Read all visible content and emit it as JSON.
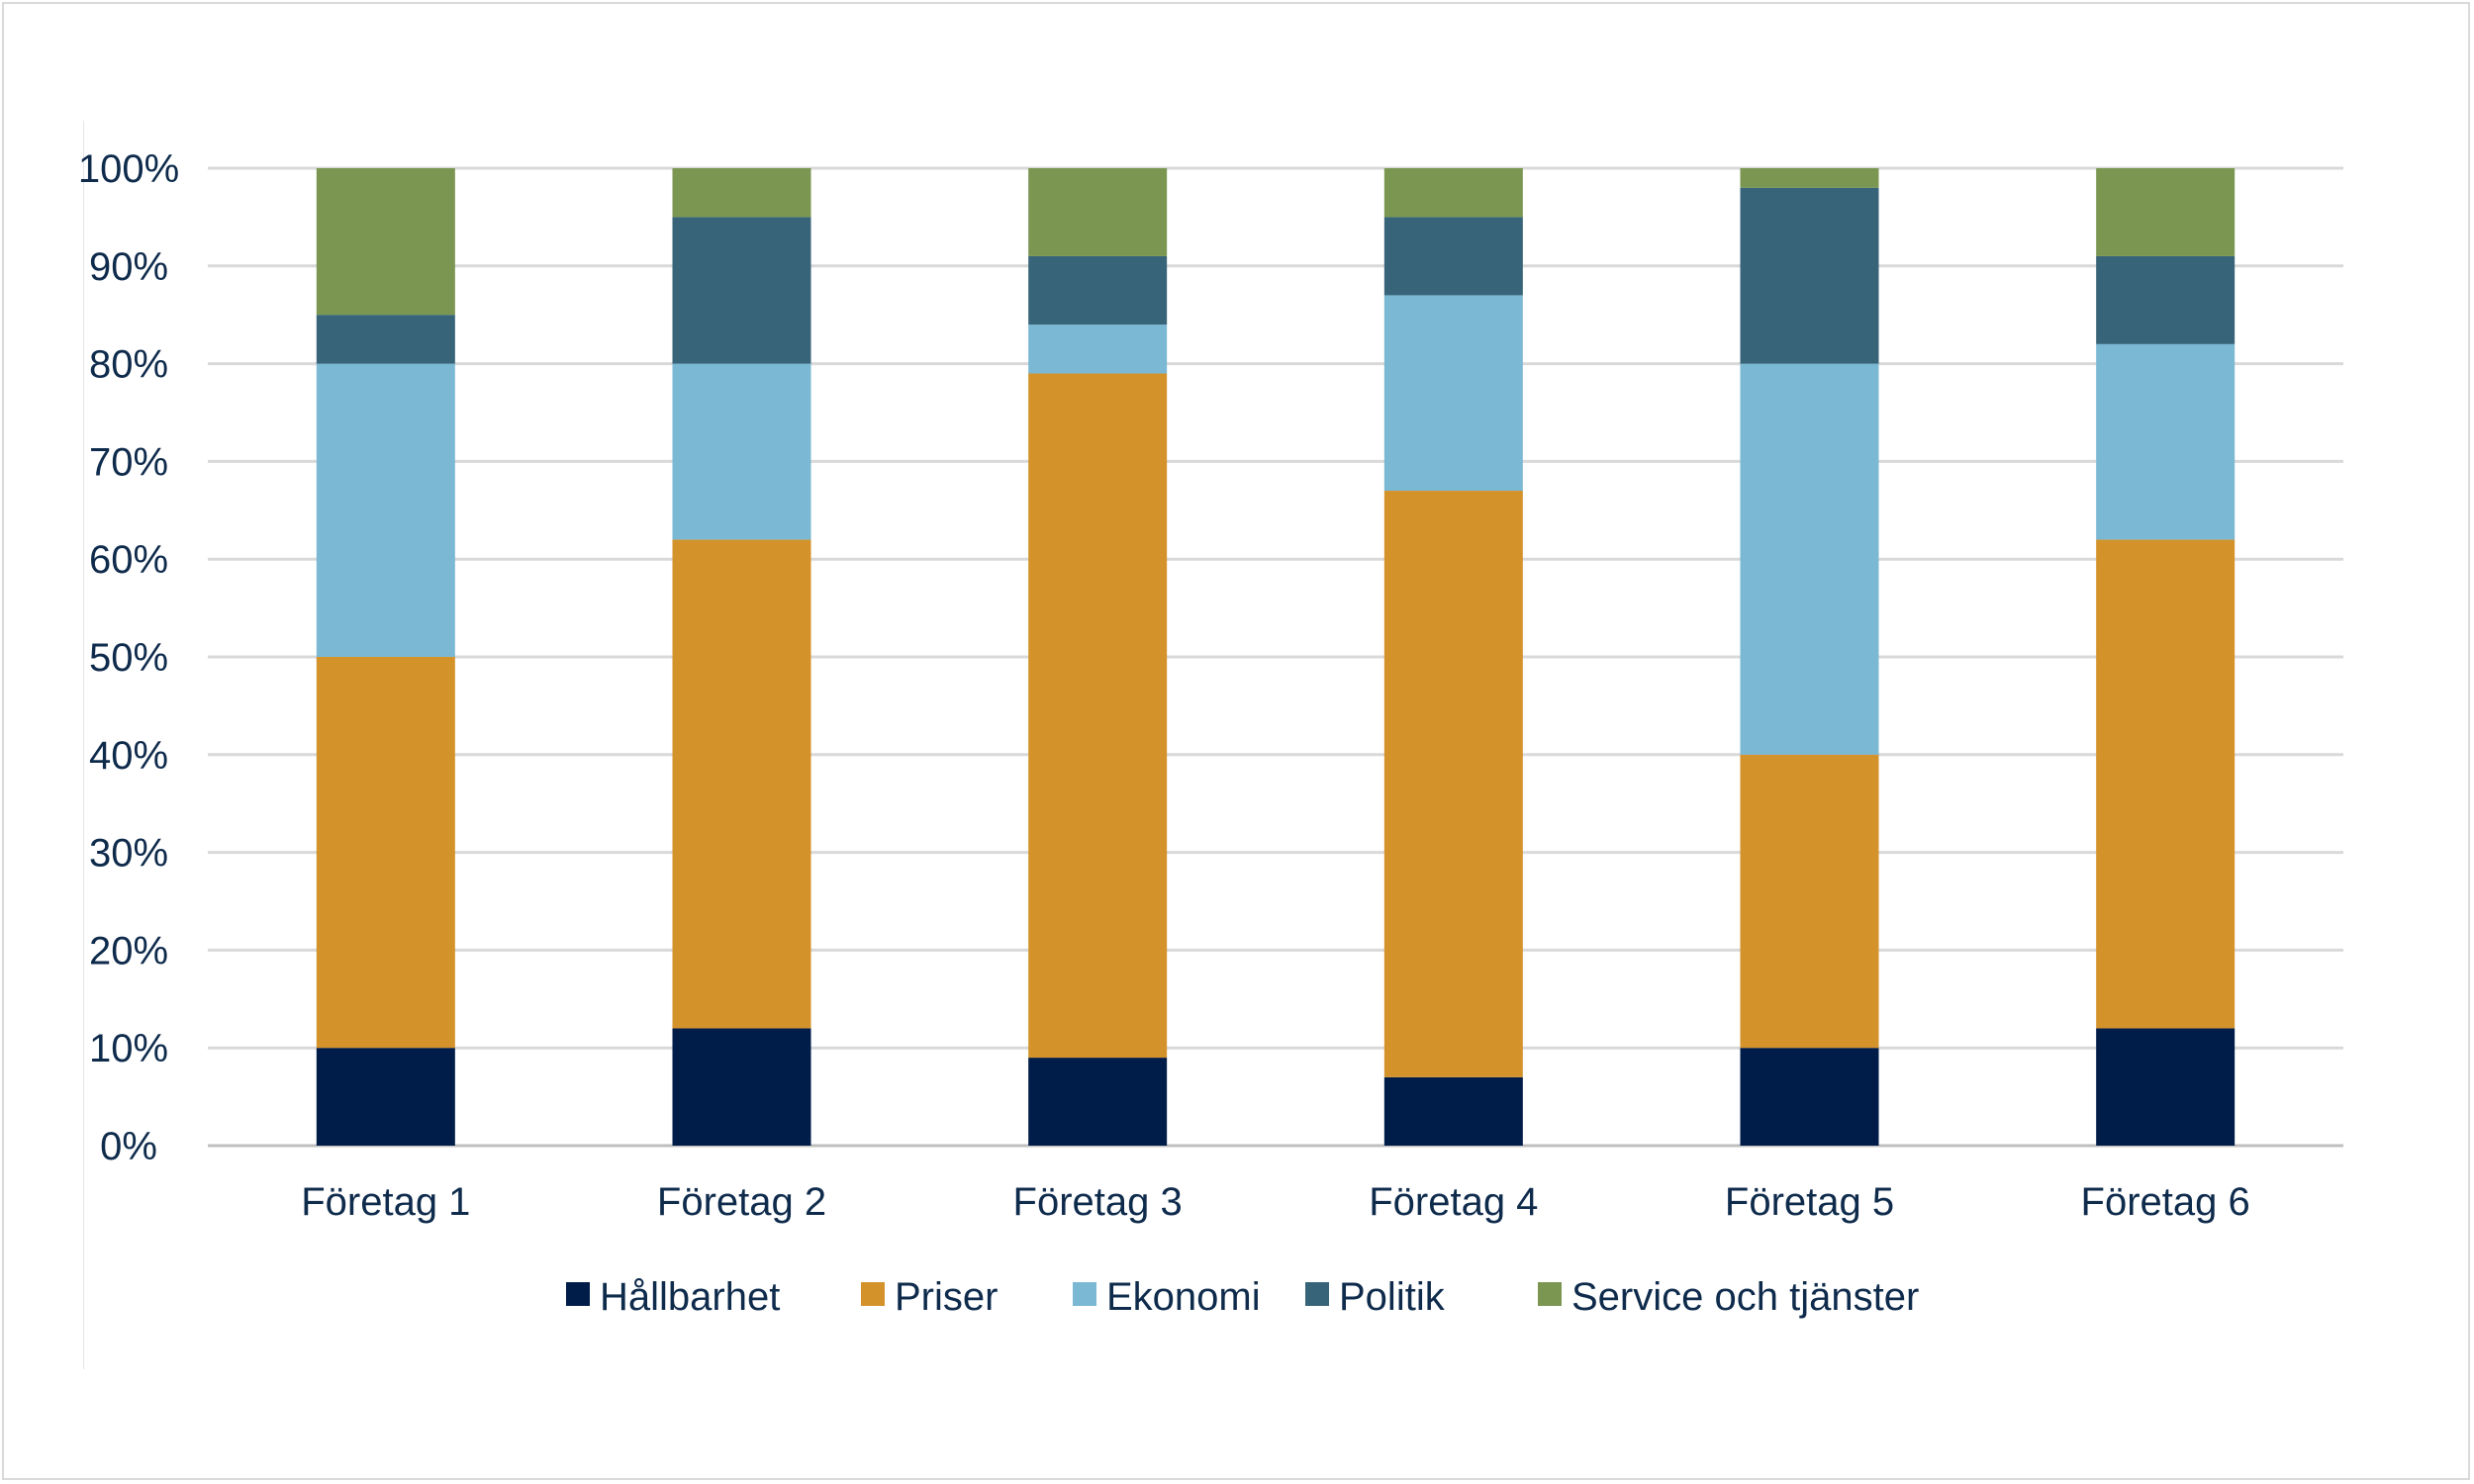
{
  "chart_data": {
    "type": "bar",
    "stacked": true,
    "categories": [
      "Företag 1",
      "Företag 2",
      "Företag 3",
      "Företag 4",
      "Företag 5",
      "Företag 6"
    ],
    "series": [
      {
        "name": "Hållbarhet",
        "color": "#001d4a",
        "values": [
          10,
          12,
          9,
          7,
          10,
          12
        ]
      },
      {
        "name": "Priser",
        "color": "#d4922a",
        "values": [
          40,
          50,
          70,
          60,
          30,
          50
        ]
      },
      {
        "name": "Ekonomi",
        "color": "#7ab8d4",
        "values": [
          30,
          18,
          5,
          20,
          40,
          20
        ]
      },
      {
        "name": "Politik",
        "color": "#376478",
        "values": [
          5,
          15,
          7,
          8,
          18,
          9
        ]
      },
      {
        "name": "Service och tjänster",
        "color": "#7a9651",
        "values": [
          15,
          5,
          9,
          5,
          2,
          9
        ]
      }
    ],
    "ylim": [
      0,
      100
    ],
    "yticks": [
      "0%",
      "10%",
      "20%",
      "30%",
      "40%",
      "50%",
      "60%",
      "70%",
      "80%",
      "90%",
      "100%"
    ],
    "grid": true,
    "legend_position": "bottom",
    "title": "",
    "xlabel": "",
    "ylabel": ""
  }
}
